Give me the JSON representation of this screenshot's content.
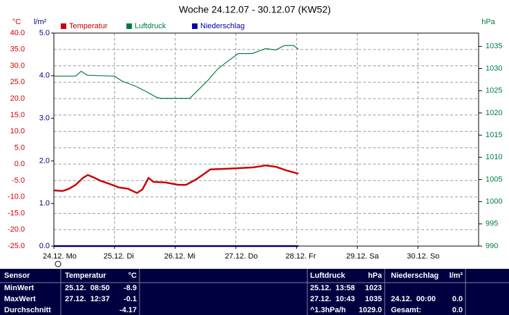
{
  "chart_data": {
    "type": "line",
    "title": "Woche 24.12.07 - 30.12.07 (KW52)",
    "ylabel": "°C",
    "y2label": "l/m²",
    "y3label": "hPa",
    "xlim": [
      0,
      7
    ],
    "xticks": [
      {
        "value": 0,
        "label": "24.12. Mo"
      },
      {
        "value": 1,
        "label": "25.12. Di"
      },
      {
        "value": 2,
        "label": "26.12. Mi"
      },
      {
        "value": 3,
        "label": "27.12. Do"
      },
      {
        "value": 4,
        "label": "28.12. Fr"
      },
      {
        "value": 5,
        "label": "29.12. Sa"
      },
      {
        "value": 6,
        "label": "30.12. So"
      }
    ],
    "ylim": [
      -25,
      40
    ],
    "yticks": [
      {
        "value": -25,
        "label": "-25.0"
      },
      {
        "value": -20,
        "label": "-20.0"
      },
      {
        "value": -15,
        "label": "-15.0"
      },
      {
        "value": -10,
        "label": "-10.0"
      },
      {
        "value": -5,
        "label": "-5.0"
      },
      {
        "value": 0,
        "label": "0.0"
      },
      {
        "value": 5,
        "label": "5.0"
      },
      {
        "value": 10,
        "label": "10.0"
      },
      {
        "value": 15,
        "label": "15.0"
      },
      {
        "value": 20,
        "label": "20.0"
      },
      {
        "value": 25,
        "label": "25.0"
      },
      {
        "value": 30,
        "label": "30.0"
      },
      {
        "value": 35,
        "label": "35.0"
      },
      {
        "value": 40,
        "label": "40.0"
      }
    ],
    "y2lim": [
      0,
      5
    ],
    "y2ticks": [
      {
        "value": 0,
        "label": "0.0"
      },
      {
        "value": 1,
        "label": "1.0"
      },
      {
        "value": 2,
        "label": "2.0"
      },
      {
        "value": 3,
        "label": "3.0"
      },
      {
        "value": 4,
        "label": "4.0"
      },
      {
        "value": 5,
        "label": "5.0"
      }
    ],
    "y3lim": [
      990,
      1038
    ],
    "y3ticks": [
      990,
      995,
      1000,
      1005,
      1010,
      1015,
      1020,
      1025,
      1030,
      1035
    ],
    "grid": true,
    "series": [
      {
        "name": "Temperatur",
        "color": "#cc0000",
        "axis": "y",
        "x": [
          0,
          0.14,
          0.25,
          0.36,
          0.48,
          0.56,
          0.65,
          0.76,
          0.93,
          1.07,
          1.22,
          1.37,
          1.46,
          1.56,
          1.64,
          1.84,
          2.05,
          2.18,
          2.35,
          2.58,
          2.87,
          3.28,
          3.49,
          3.66,
          3.83,
          4.03
        ],
        "values": [
          -8.0,
          -8.2,
          -7.5,
          -6.3,
          -4.2,
          -3.3,
          -4.0,
          -5.0,
          -6.1,
          -7.1,
          -7.5,
          -8.8,
          -7.7,
          -4.2,
          -5.4,
          -5.6,
          -6.3,
          -6.3,
          -4.6,
          -1.6,
          -1.4,
          -1.0,
          -0.4,
          -0.8,
          -1.9,
          -2.9
        ]
      },
      {
        "name": "Luftdruck",
        "color": "#007a3d",
        "axis": "y3",
        "x": [
          0,
          0.36,
          0.45,
          0.55,
          1.0,
          1.12,
          1.35,
          1.54,
          1.68,
          1.75,
          2.24,
          2.41,
          2.53,
          2.7,
          2.87,
          3.04,
          3.27,
          3.49,
          3.66,
          3.8,
          3.95,
          4.03
        ],
        "values": [
          1028.3,
          1028.3,
          1029.4,
          1028.5,
          1028.3,
          1027.2,
          1026.0,
          1024.7,
          1023.6,
          1023.3,
          1023.3,
          1025.6,
          1027.2,
          1029.9,
          1031.7,
          1033.4,
          1033.4,
          1034.5,
          1034.2,
          1035.2,
          1035.2,
          1034.4
        ]
      },
      {
        "name": "Niederschlag",
        "color": "#0000aa",
        "axis": "y2",
        "x": [
          0,
          4.03
        ],
        "values": [
          0,
          0
        ]
      }
    ]
  },
  "table": {
    "header": {
      "label": "Sensor",
      "temperatur": {
        "time": "Temperatur",
        "value": "°C"
      },
      "luftdruck": {
        "time": "Luftdruck",
        "value": "hPa"
      },
      "niederschlag": {
        "time": "Niederschlag",
        "value": "l/m²"
      }
    },
    "rows": [
      {
        "label": "MinWert",
        "temperatur": {
          "time": "25.12.  08:50",
          "value": "-8.9"
        },
        "luftdruck": {
          "time": "25.12.  13:58",
          "value": "1023"
        }
      },
      {
        "label": "MaxWert",
        "temperatur": {
          "time": "27.12.  12:37",
          "value": "-0.1"
        },
        "luftdruck": {
          "time": "27.12.  10:43",
          "value": "1035"
        },
        "niederschlag": {
          "time": "24.12.  00:00",
          "value": "0.0"
        }
      },
      {
        "label": "Durchschnitt",
        "temperatur": {
          "value": "-4.17"
        },
        "luftdruck": {
          "time": "^1.3hPa/h",
          "value": "1029.0"
        },
        "niederschlag": {
          "time": "Gesamt:",
          "value": "0.0"
        }
      }
    ]
  }
}
